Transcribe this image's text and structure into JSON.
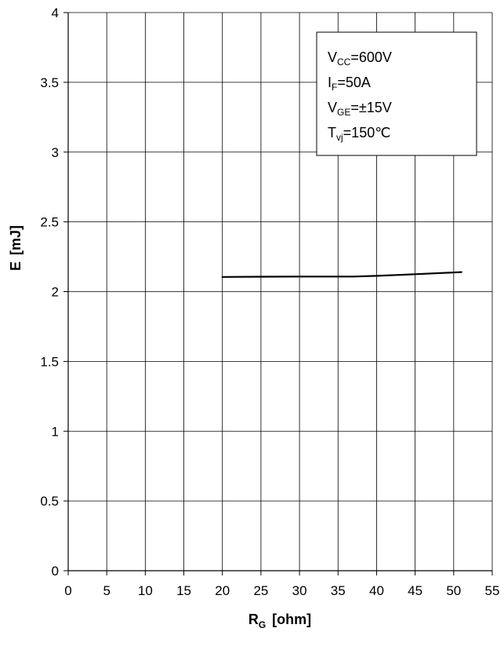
{
  "chart_data": {
    "type": "line",
    "title": "",
    "xlabel": {
      "main": "R",
      "sub": "G",
      "unit": "[ohm]"
    },
    "ylabel": {
      "main": "E",
      "unit": "[mJ]"
    },
    "xlim": [
      0,
      55
    ],
    "ylim": [
      0,
      4
    ],
    "xticks": [
      "0",
      "5",
      "10",
      "15",
      "20",
      "25",
      "30",
      "35",
      "40",
      "45",
      "50",
      "55"
    ],
    "yticks": [
      "0",
      "0.5",
      "1",
      "1.5",
      "2",
      "2.5",
      "3",
      "3.5",
      "4"
    ],
    "grid": true,
    "series": [
      {
        "x": [
          20,
          25,
          30,
          37,
          40,
          45,
          51
        ],
        "y": [
          2.105,
          2.107,
          2.108,
          2.108,
          2.113,
          2.125,
          2.14
        ],
        "color": "#000000"
      }
    ],
    "legend_box": {
      "placement": "top-right",
      "lines": [
        {
          "main": "V",
          "sub": "CC",
          "rest": "=600V"
        },
        {
          "main": "I",
          "sub": "F",
          "rest": "=50A"
        },
        {
          "main": "V",
          "sub": "GE",
          "rest": "=±15V"
        },
        {
          "main": "T",
          "sub": "vj",
          "rest": "=150℃"
        }
      ]
    }
  }
}
